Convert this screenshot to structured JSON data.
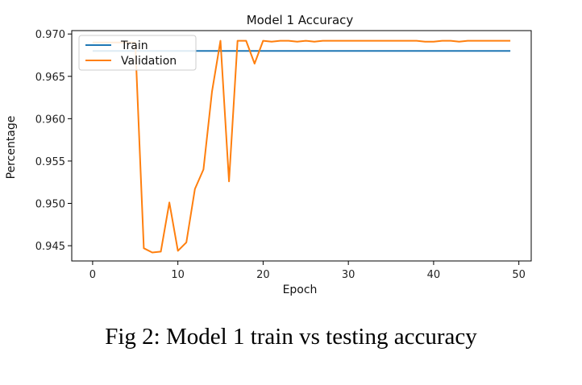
{
  "figure_caption": "Fig 2: Model 1 train vs testing accuracy",
  "chart_data": {
    "type": "line",
    "title": "Model 1 Accuracy",
    "xlabel": "Epoch",
    "ylabel": "Percentage",
    "xlim": [
      -2.45,
      51.45
    ],
    "ylim": [
      0.9432,
      0.9704
    ],
    "xticks": [
      0,
      10,
      20,
      30,
      40,
      50
    ],
    "yticks": [
      0.945,
      0.95,
      0.955,
      0.96,
      0.965,
      0.97
    ],
    "ytick_labels": [
      "0.945",
      "0.950",
      "0.955",
      "0.960",
      "0.965",
      "0.970"
    ],
    "grid": false,
    "legend": {
      "location": "top-left",
      "entries": [
        "Train",
        "Validation"
      ]
    },
    "series": [
      {
        "name": "Train",
        "color": "#1f77b4",
        "x": [
          0,
          1,
          2,
          3,
          4,
          5,
          6,
          7,
          8,
          9,
          10,
          11,
          12,
          13,
          14,
          15,
          16,
          17,
          18,
          19,
          20,
          21,
          22,
          23,
          24,
          25,
          26,
          27,
          28,
          29,
          30,
          31,
          32,
          33,
          34,
          35,
          36,
          37,
          38,
          39,
          40,
          41,
          42,
          43,
          44,
          45,
          46,
          47,
          48,
          49
        ],
        "values": [
          0.968,
          0.968,
          0.968,
          0.968,
          0.968,
          0.968,
          0.968,
          0.968,
          0.968,
          0.968,
          0.968,
          0.968,
          0.968,
          0.968,
          0.968,
          0.968,
          0.968,
          0.968,
          0.968,
          0.968,
          0.968,
          0.968,
          0.968,
          0.968,
          0.968,
          0.968,
          0.968,
          0.968,
          0.968,
          0.968,
          0.968,
          0.968,
          0.968,
          0.968,
          0.968,
          0.968,
          0.968,
          0.968,
          0.968,
          0.968,
          0.968,
          0.968,
          0.968,
          0.968,
          0.968,
          0.968,
          0.968,
          0.968,
          0.968,
          0.968
        ]
      },
      {
        "name": "Validation",
        "color": "#ff7f0e",
        "x": [
          0,
          1,
          2,
          3,
          4,
          5,
          6,
          7,
          8,
          9,
          10,
          11,
          12,
          13,
          14,
          15,
          16,
          17,
          18,
          19,
          20,
          21,
          22,
          23,
          24,
          25,
          26,
          27,
          28,
          29,
          30,
          31,
          32,
          33,
          34,
          35,
          36,
          37,
          38,
          39,
          40,
          41,
          42,
          43,
          44,
          45,
          46,
          47,
          48,
          49
        ],
        "values": [
          0.969,
          0.969,
          0.969,
          0.969,
          0.969,
          0.969,
          0.9447,
          0.9442,
          0.9443,
          0.9501,
          0.9444,
          0.9454,
          0.9517,
          0.954,
          0.9632,
          0.9692,
          0.9526,
          0.9692,
          0.9692,
          0.9665,
          0.9692,
          0.9691,
          0.9692,
          0.9692,
          0.9691,
          0.9692,
          0.9691,
          0.9692,
          0.9692,
          0.9692,
          0.9692,
          0.9692,
          0.9692,
          0.9692,
          0.9692,
          0.9692,
          0.9692,
          0.9692,
          0.9692,
          0.9691,
          0.9691,
          0.9692,
          0.9692,
          0.9691,
          0.9692,
          0.9692,
          0.9692,
          0.9692,
          0.9692,
          0.9692
        ]
      }
    ]
  }
}
